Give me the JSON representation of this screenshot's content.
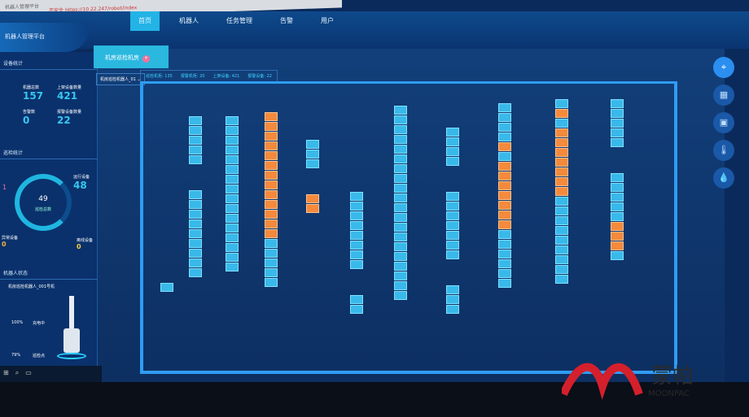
{
  "browser": {
    "tab": "机器人管理平台",
    "security": "不安全",
    "url": "https://10.22.247/robot/index"
  },
  "app": {
    "title": "机器人管理平台"
  },
  "nav": [
    {
      "label": "首页",
      "active": true
    },
    {
      "label": "机器人"
    },
    {
      "label": "任务管理"
    },
    {
      "label": "告警"
    },
    {
      "label": "用户"
    }
  ],
  "left": {
    "device_section": "设备统计",
    "stats": [
      {
        "label": "机器总数",
        "value": "157"
      },
      {
        "label": "上架设备数量",
        "value": "421"
      },
      {
        "label": "告警数",
        "value": "0"
      },
      {
        "label": "报警设备数量",
        "value": "22"
      }
    ],
    "task_section": "巡检统计",
    "gauge": {
      "value": "49",
      "label": "巡检总数",
      "left_value": "1",
      "right_label": "运行设备",
      "right_value": "48",
      "bl_label": "异常设备",
      "bl_value": "0",
      "br_label": "离线设备",
      "br_value": "0"
    },
    "robot_section": "机器人状态",
    "robot_name": "机房巡检机器人_001号机",
    "robot_stats": [
      {
        "label": "100%"
      },
      {
        "label": "充电中"
      },
      {
        "label": "79%"
      },
      {
        "label": "巡检点"
      }
    ]
  },
  "main": {
    "tab": {
      "label": "机房巡检机房",
      "badge": "+"
    },
    "select": "机房巡检机器人_01",
    "statsbar": [
      "巡检机柜: 135",
      "报警机柜: 20",
      "上架设备: 421",
      "报警设备: 22"
    ],
    "racks": [
      {
        "groups": [
          [
            "b"
          ]
        ]
      },
      {
        "groups": [
          [
            "b",
            "b",
            "b",
            "b",
            "b"
          ],
          [
            "b",
            "b",
            "b",
            "b",
            "b",
            "b",
            "b",
            "b",
            "b"
          ]
        ]
      },
      {
        "groups": [
          [
            "b",
            "b",
            "b",
            "b",
            "b",
            "b",
            "b",
            "b",
            "b",
            "b",
            "b",
            "b",
            "b",
            "b",
            "b",
            "b"
          ]
        ]
      },
      {
        "groups": [
          [
            "o",
            "o",
            "o",
            "o",
            "o",
            "o",
            "o",
            "o",
            "o",
            "o",
            "o",
            "o",
            "o",
            "b",
            "b",
            "b",
            "b",
            "b"
          ]
        ]
      },
      {
        "groups": [
          [
            "b",
            "b",
            "b"
          ],
          [
            "o",
            "o"
          ]
        ]
      },
      {
        "groups": [
          [
            "b",
            "b",
            "b",
            "b",
            "b",
            "b",
            "b",
            "b"
          ],
          [
            "b",
            "b"
          ]
        ]
      },
      {
        "groups": [
          [
            "b",
            "b",
            "b",
            "b",
            "b",
            "b",
            "b",
            "b",
            "b",
            "b",
            "b",
            "b",
            "b",
            "b",
            "b",
            "b",
            "b",
            "b",
            "b",
            "b"
          ]
        ]
      },
      {
        "groups": [
          [
            "b",
            "b",
            "b",
            "b"
          ],
          [
            "b",
            "b",
            "b",
            "b",
            "b",
            "b",
            "b"
          ],
          [
            "b",
            "b",
            "b"
          ]
        ]
      },
      {
        "groups": [
          [
            "b",
            "b",
            "b",
            "b",
            "o",
            "b",
            "o",
            "o",
            "o",
            "o",
            "o",
            "o",
            "o",
            "b",
            "b",
            "b",
            "b",
            "b",
            "b"
          ]
        ]
      },
      {
        "groups": [
          [
            "b",
            "o",
            "b",
            "o",
            "o",
            "o",
            "o",
            "o",
            "o",
            "o",
            "b",
            "b",
            "b",
            "b",
            "b",
            "b",
            "b",
            "b",
            "b"
          ]
        ]
      },
      {
        "groups": [
          [
            "b",
            "b",
            "b",
            "b",
            "b"
          ],
          [
            "b",
            "b",
            "b",
            "b",
            "b",
            "o",
            "o",
            "o",
            "b"
          ]
        ]
      }
    ],
    "colors": {
      "normal": "#39b9ea",
      "alarm": "#f58a3c",
      "wall": "#2f9cf5"
    }
  },
  "right_icons": [
    "location-icon",
    "map-icon",
    "camera-icon",
    "thermometer-icon",
    "humidity-icon"
  ],
  "watermark": {
    "brand_cn": "蒙帕",
    "brand_en": "MOONPAC"
  }
}
